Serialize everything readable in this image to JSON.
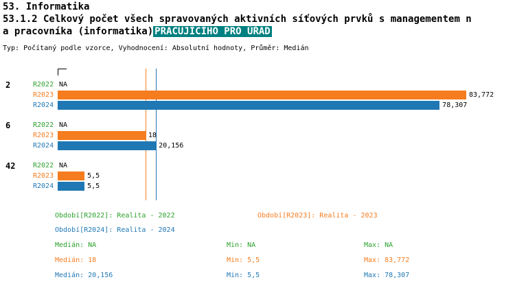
{
  "header": {
    "title": "53. Informatika",
    "subtitle_line1": "53.1.2 Celkový počet všech spravovaných aktivních síťových prvků s managementem n",
    "subtitle_line2": "a pracovníka (informatika)",
    "subtitle_highlight": "PRACUJÍCÍHO PRO ÚŘAD",
    "meta": "Typ: Počítaný podle vzorce, Vyhodnocení: Absolutní hodnoty, Průměr: Medián"
  },
  "colors": {
    "r2022_green": "#2ca02c",
    "r2023_orange": "#f57c1f",
    "r2024_blue": "#1f77b4",
    "highlight_bg": "#008080",
    "highlight_fg": "#ffffff",
    "axis": "#000000"
  },
  "chart_data": {
    "type": "bar",
    "orientation": "horizontal",
    "xlim": [
      0,
      92
    ],
    "grid": false,
    "series_colors": {
      "R2022": "#2ca02c",
      "R2023": "#f57c1f",
      "R2024": "#1f77b4"
    },
    "groups": [
      {
        "label": "2",
        "bars": [
          {
            "series": "R2022",
            "value": null,
            "display": "NA"
          },
          {
            "series": "R2023",
            "value": 83.772,
            "display": "83,772"
          },
          {
            "series": "R2024",
            "value": 78.307,
            "display": "78,307"
          }
        ]
      },
      {
        "label": "6",
        "bars": [
          {
            "series": "R2022",
            "value": null,
            "display": "NA"
          },
          {
            "series": "R2023",
            "value": 18,
            "display": "18"
          },
          {
            "series": "R2024",
            "value": 20.156,
            "display": "20,156"
          }
        ]
      },
      {
        "label": "42",
        "bars": [
          {
            "series": "R2022",
            "value": null,
            "display": "NA"
          },
          {
            "series": "R2023",
            "value": 5.5,
            "display": "5,5"
          },
          {
            "series": "R2024",
            "value": 5.5,
            "display": "5,5"
          }
        ]
      }
    ],
    "reference_lines": [
      {
        "series": "R2023",
        "label": "Medián R2023",
        "value": 18,
        "color": "#f57c1f"
      },
      {
        "series": "R2024",
        "label": "Medián R2024",
        "value": 20.156,
        "color": "#1f77b4"
      }
    ]
  },
  "legend": {
    "periods": [
      {
        "series": "R2022",
        "text": "Období[R2022]: Realita - 2022"
      },
      {
        "series": "R2023",
        "text": "Období[R2023]: Realita - 2023"
      },
      {
        "series": "R2024",
        "text": "Období[R2024]: Realita - 2024"
      }
    ],
    "stats": [
      {
        "series": "R2022",
        "median": "Medián: NA",
        "min": "Min: NA",
        "max": "Max: NA"
      },
      {
        "series": "R2023",
        "median": "Medián: 18",
        "min": "Min: 5,5",
        "max": "Max: 83,772"
      },
      {
        "series": "R2024",
        "median": "Medián: 20,156",
        "min": "Min: 5,5",
        "max": "Max: 78,307"
      }
    ]
  }
}
